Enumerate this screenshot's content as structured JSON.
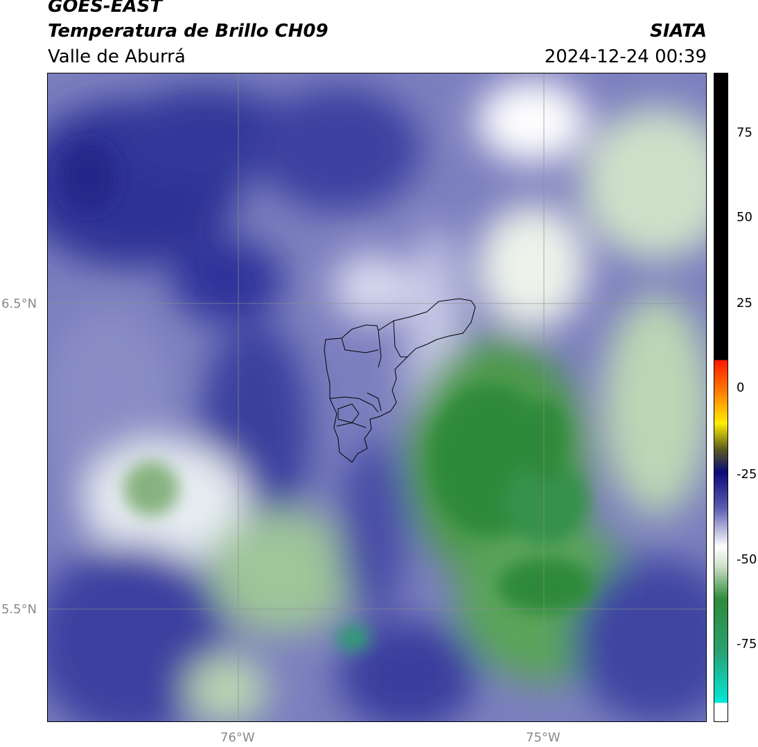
{
  "header": {
    "satellite": "GOES-EAST",
    "product": "Temperatura de Brillo CH09",
    "region": "Valle de Aburrá",
    "organization": "SIATA",
    "timestamp": "2024-12-24 00:39"
  },
  "map": {
    "lat_labels": [
      "6.5°N",
      "5.5°N"
    ],
    "lon_labels": [
      "76°W",
      "75°W"
    ],
    "gridline_color": "#9a9a9a"
  },
  "colorbar": {
    "tick_labels": [
      "75",
      "50",
      "25",
      "0",
      "-25",
      "-50",
      "-75"
    ],
    "range": [
      -95,
      92
    ],
    "colors": {
      "warm_above": "#000000",
      "red": "#ff1a00",
      "yellow": "#ffee00",
      "dark_blue": "#0a0a78",
      "white": "#ffffff",
      "green": "#2e8b3a",
      "cyan": "#00e8d8"
    }
  }
}
